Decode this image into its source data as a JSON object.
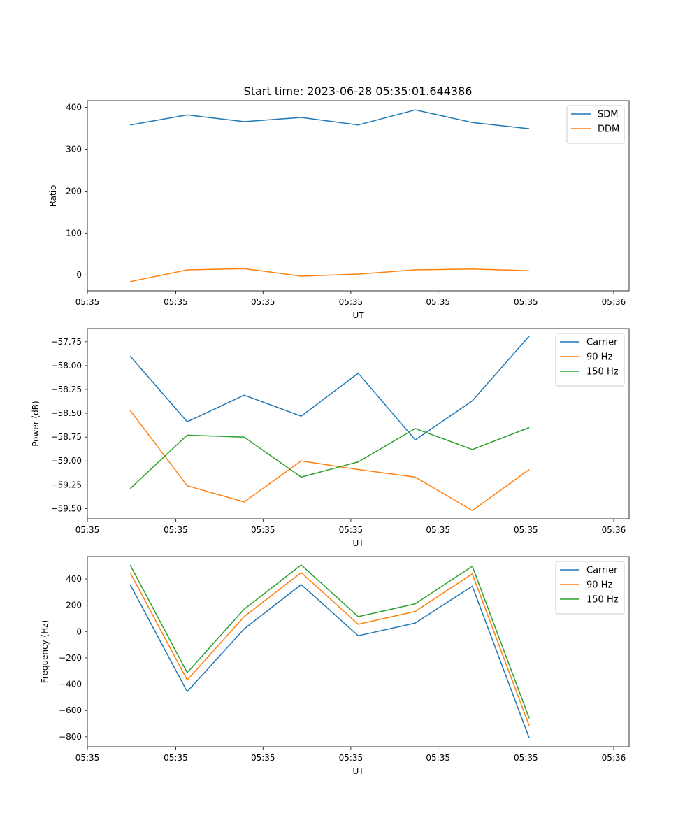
{
  "title": "Start time: 2023-06-28 05:35:01.644386",
  "chart_data": [
    {
      "type": "line",
      "ylabel": "Ratio",
      "xlabel": "UT",
      "x": [
        0,
        1,
        2,
        3,
        4,
        5,
        6,
        7
      ],
      "xlim": [
        -0.75,
        8.75
      ],
      "xticks": [
        -0.75,
        0.8,
        2.33,
        3.87,
        5.4,
        6.94,
        8.48
      ],
      "xticklabels": [
        "05:35",
        "05:35",
        "05:35",
        "05:35",
        "05:35",
        "05:35",
        "05:36"
      ],
      "ylim": [
        -38,
        416
      ],
      "yticks": [
        0,
        100,
        200,
        300,
        400
      ],
      "yticklabels": [
        "0",
        "100",
        "200",
        "300",
        "400"
      ],
      "legend": "top-right",
      "series": [
        {
          "name": "SDM",
          "color": "#1f77b4",
          "values": [
            358,
            382,
            366,
            376,
            358,
            394,
            364,
            349
          ]
        },
        {
          "name": "DDM",
          "color": "#ff7f0e",
          "values": [
            -16,
            12,
            15,
            -3,
            2,
            12,
            14,
            10
          ]
        }
      ]
    },
    {
      "type": "line",
      "ylabel": "Power (dB)",
      "xlabel": "UT",
      "x": [
        0,
        1,
        2,
        3,
        4,
        5,
        6,
        7
      ],
      "xlim": [
        -0.75,
        8.75
      ],
      "xticks": [
        -0.75,
        0.8,
        2.33,
        3.87,
        5.4,
        6.94,
        8.48
      ],
      "xticklabels": [
        "05:35",
        "05:35",
        "05:35",
        "05:35",
        "05:35",
        "05:35",
        "05:36"
      ],
      "ylim": [
        -59.607,
        -57.612
      ],
      "yticks": [
        -59.5,
        -59.25,
        -59.0,
        -58.75,
        -58.5,
        -58.25,
        -58.0,
        -57.75
      ],
      "yticklabels": [
        "−59.50",
        "−59.25",
        "−59.00",
        "−58.75",
        "−58.50",
        "−58.25",
        "−58.00",
        "−57.75"
      ],
      "legend": "top-right",
      "series": [
        {
          "name": "Carrier",
          "color": "#1f77b4",
          "values": [
            -57.9,
            -58.59,
            -58.31,
            -58.53,
            -58.08,
            -58.78,
            -58.37,
            -57.69
          ]
        },
        {
          "name": "90 Hz",
          "color": "#ff7f0e",
          "values": [
            -58.47,
            -59.26,
            -59.43,
            -59.0,
            -59.09,
            -59.17,
            -59.52,
            -59.09
          ]
        },
        {
          "name": "150 Hz",
          "color": "#2ca02c",
          "values": [
            -59.29,
            -58.73,
            -58.75,
            -59.17,
            -59.01,
            -58.66,
            -58.88,
            -58.65
          ]
        }
      ]
    },
    {
      "type": "line",
      "ylabel": "Frequency (Hz)",
      "xlabel": "UT",
      "x": [
        0,
        1,
        2,
        3,
        4,
        5,
        6,
        7
      ],
      "xlim": [
        -0.75,
        8.75
      ],
      "xticks": [
        -0.75,
        0.8,
        2.33,
        3.87,
        5.4,
        6.94,
        8.48
      ],
      "xticklabels": [
        "05:35",
        "05:35",
        "05:35",
        "05:35",
        "05:35",
        "05:35",
        "05:36"
      ],
      "ylim": [
        -875,
        570
      ],
      "yticks": [
        -800,
        -600,
        -400,
        -200,
        0,
        200,
        400
      ],
      "yticklabels": [
        "−800",
        "−600",
        "−400",
        "−200",
        "0",
        "200",
        "400"
      ],
      "legend": "top-right",
      "series": [
        {
          "name": "Carrier",
          "color": "#1f77b4",
          "values": [
            357,
            -457,
            20,
            357,
            -32,
            65,
            345,
            -810
          ]
        },
        {
          "name": "90 Hz",
          "color": "#ff7f0e",
          "values": [
            448,
            -368,
            113,
            448,
            55,
            153,
            438,
            -718
          ]
        },
        {
          "name": "150 Hz",
          "color": "#2ca02c",
          "values": [
            506,
            -312,
            170,
            506,
            113,
            211,
            496,
            -660
          ]
        }
      ]
    }
  ]
}
